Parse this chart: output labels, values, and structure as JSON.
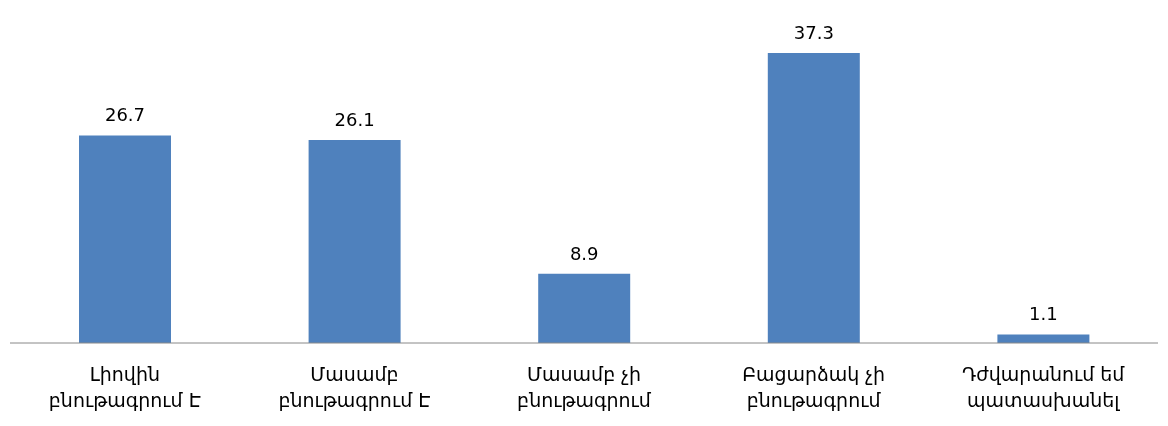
{
  "chart_data": {
    "type": "bar",
    "categories": [
      "Լիովին բնութագրում Է",
      "Մասամբ բնութագրում Է",
      "Մասամբ չի բնութագրում",
      "Բացարձակ չի բնութագրում",
      "Դժվարանում եմ պատասխանել"
    ],
    "values": [
      26.7,
      26.1,
      8.9,
      37.3,
      1.1
    ],
    "color": "#4f81bd",
    "data_labels": true,
    "grid": false,
    "legend": false
  }
}
